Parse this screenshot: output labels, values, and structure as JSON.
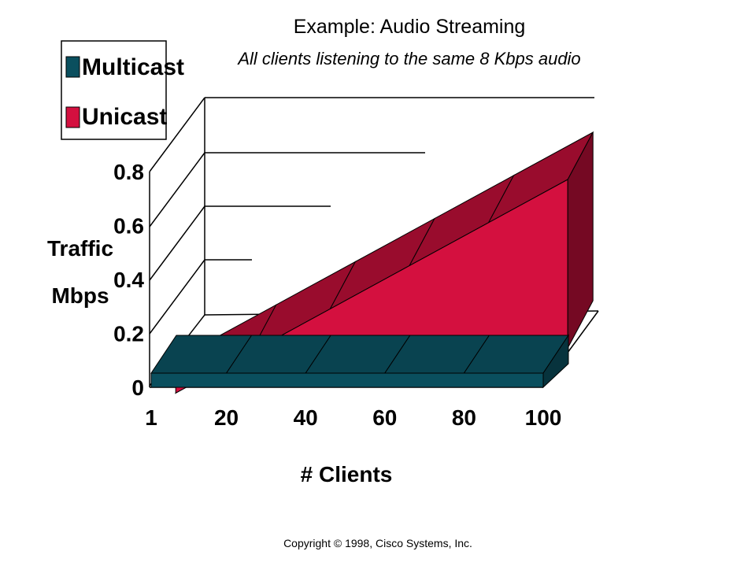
{
  "chart_data": {
    "type": "area",
    "title": "Example: Audio Streaming",
    "subtitle": "All clients listening to the same 8 Kbps audio",
    "ylabel_lines": [
      "Traffic",
      "Mbps"
    ],
    "xlabel": "# Clients",
    "x_ticks": [
      "1",
      "20",
      "40",
      "60",
      "80",
      "100"
    ],
    "y_ticks": [
      "0",
      "0.2",
      "0.4",
      "0.6",
      "0.8"
    ],
    "ylim": [
      0,
      0.8
    ],
    "x": [
      1,
      20,
      40,
      60,
      80,
      100
    ],
    "series": [
      {
        "name": "Multicast",
        "values": [
          0.008,
          0.008,
          0.008,
          0.008,
          0.008,
          0.008
        ],
        "color": "#0a4f5e"
      },
      {
        "name": "Unicast",
        "values": [
          0.008,
          0.16,
          0.32,
          0.48,
          0.64,
          0.8
        ],
        "color": "#d4103f"
      }
    ],
    "legend": "top-left",
    "grid": true,
    "style": "3d"
  },
  "copyright": "Copyright © 1998, Cisco Systems, Inc."
}
